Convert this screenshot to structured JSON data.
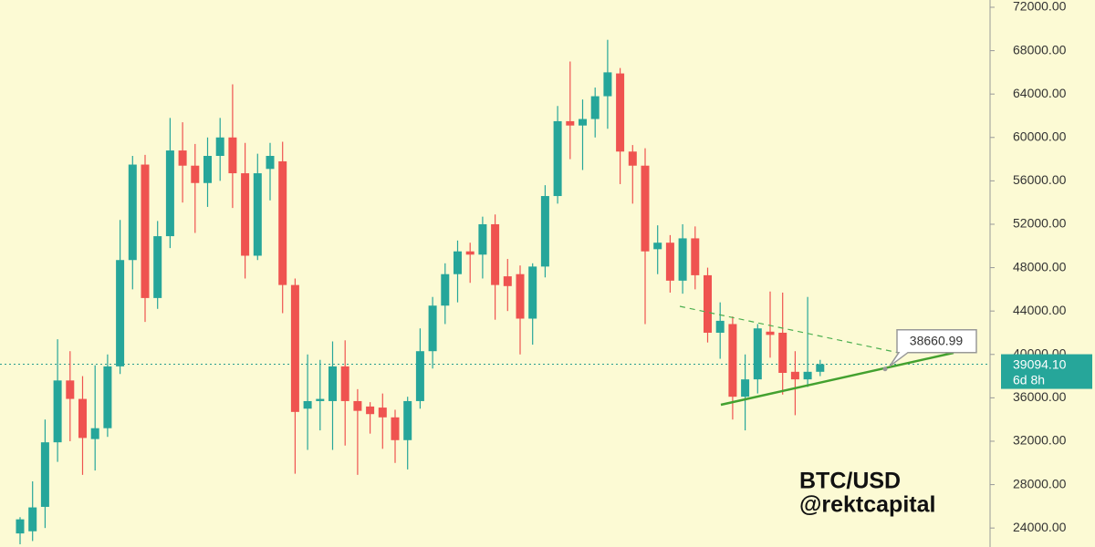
{
  "chart_data": {
    "type": "candlestick",
    "series": {
      "open": [
        23500,
        23700,
        25950,
        31900,
        37600,
        35900,
        32200,
        33200,
        38900,
        48700,
        57500,
        45200,
        50900,
        58800,
        57400,
        55800,
        58300,
        60000,
        56700,
        49100,
        57100,
        57800,
        46400,
        35000,
        35700,
        35700,
        38900,
        35700,
        35200,
        35100,
        34200,
        32100,
        35700,
        40300,
        44500,
        47400,
        49500,
        49200,
        52000,
        47200,
        47400,
        43300,
        48100,
        54600,
        61500,
        61100,
        61700,
        63800,
        65900,
        58700,
        57400,
        49700,
        50300,
        46800,
        50700,
        47300,
        42000,
        42800,
        36100,
        37700,
        42100,
        42000,
        38400,
        37700,
        38400
      ],
      "high": [
        25000,
        28300,
        34000,
        41400,
        40300,
        38000,
        39000,
        40000,
        52400,
        58300,
        58400,
        52300,
        61800,
        61400,
        59400,
        60000,
        61800,
        64900,
        59500,
        58500,
        59500,
        59600,
        47000,
        40000,
        39500,
        41200,
        41300,
        36800,
        35600,
        36400,
        34900,
        36100,
        42400,
        45300,
        48400,
        50500,
        50300,
        52700,
        52900,
        48800,
        48200,
        48400,
        55600,
        62900,
        67000,
        63500,
        64600,
        69000,
        66400,
        59300,
        59000,
        51900,
        51000,
        52000,
        51800,
        48000,
        44800,
        43500,
        40000,
        42800,
        45800,
        45700,
        40300,
        45300,
        39500
      ],
      "low": [
        22500,
        22800,
        24000,
        30100,
        32000,
        28900,
        29300,
        32400,
        38200,
        46000,
        43000,
        44200,
        49800,
        54000,
        51200,
        53600,
        56000,
        53500,
        47000,
        48700,
        54200,
        43800,
        29000,
        31200,
        33000,
        31200,
        31600,
        28900,
        32700,
        31300,
        30000,
        29400,
        35000,
        38700,
        42800,
        44800,
        46600,
        47000,
        43200,
        44000,
        40000,
        40900,
        47100,
        53900,
        58000,
        57000,
        60000,
        60800,
        55700,
        53900,
        42800,
        47400,
        45700,
        45600,
        46000,
        41100,
        39600,
        34000,
        33000,
        36400,
        39700,
        36300,
        34400,
        37000,
        38000
      ],
      "close": [
        24800,
        25900,
        31900,
        37600,
        35900,
        32300,
        33200,
        38900,
        48700,
        57500,
        45200,
        50900,
        58800,
        57400,
        55800,
        58300,
        60000,
        56700,
        49100,
        56700,
        58300,
        46400,
        34700,
        35700,
        35900,
        38900,
        35700,
        34800,
        34500,
        34200,
        32100,
        35700,
        40300,
        44500,
        47400,
        49500,
        49200,
        52000,
        46400,
        46300,
        43300,
        48100,
        54600,
        61500,
        61100,
        61700,
        63800,
        66000,
        58700,
        57400,
        49500,
        50300,
        46800,
        50700,
        47300,
        42000,
        43100,
        36100,
        37700,
        42400,
        41800,
        38300,
        37700,
        38400,
        39094.1
      ]
    },
    "up_color": "#26a69a",
    "down_color": "#ef5350",
    "ylim": [
      22250,
      72670
    ],
    "yticks": [
      {
        "value": 24000,
        "label": "24000.00"
      },
      {
        "value": 28000,
        "label": "28000.00"
      },
      {
        "value": 32000,
        "label": "32000.00"
      },
      {
        "value": 36000,
        "label": "36000.00"
      },
      {
        "value": 40000,
        "label": "40000.00"
      },
      {
        "value": 44000,
        "label": "44000.00"
      },
      {
        "value": 48000,
        "label": "48000.00"
      },
      {
        "value": 52000,
        "label": "52000.00"
      },
      {
        "value": 56000,
        "label": "56000.00"
      },
      {
        "value": 60000,
        "label": "60000.00"
      },
      {
        "value": 64000,
        "label": "64000.00"
      },
      {
        "value": 68000,
        "label": "68000.00"
      },
      {
        "value": 72000,
        "label": "72000.00"
      }
    ],
    "current_price": {
      "value": 39094.1,
      "label": "39094.10"
    },
    "countdown": "6d 8h",
    "callout_price": 38660.99,
    "symbol": "BTC/USD",
    "author": "@rektcapital"
  }
}
